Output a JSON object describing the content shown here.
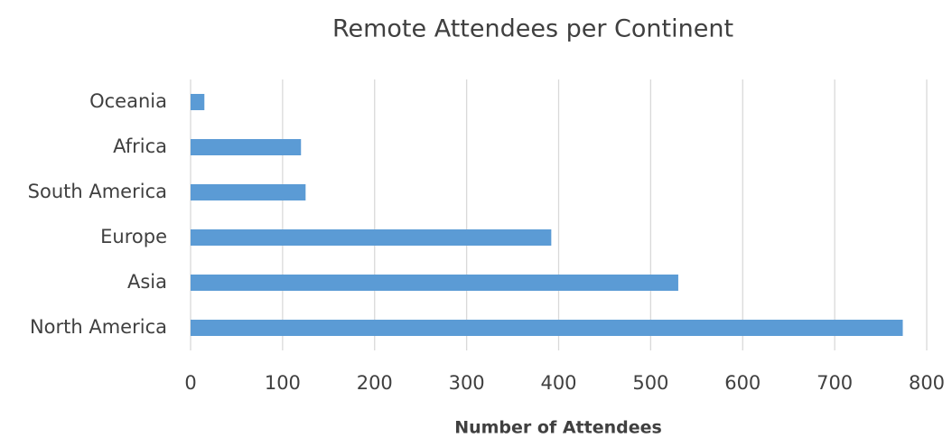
{
  "chart_data": {
    "type": "hbar",
    "title": "Remote Attendees per Continent",
    "xlabel": "Number of Attendees",
    "categories": [
      "Oceania",
      "Africa",
      "South America",
      "Europe",
      "Asia",
      "North America"
    ],
    "values": [
      15,
      120,
      125,
      392,
      530,
      774
    ],
    "color": "#5b9bd5",
    "xlim": [
      0,
      800
    ],
    "xticks": [
      0,
      100,
      200,
      300,
      400,
      500,
      600,
      700,
      800
    ],
    "grid": true
  }
}
